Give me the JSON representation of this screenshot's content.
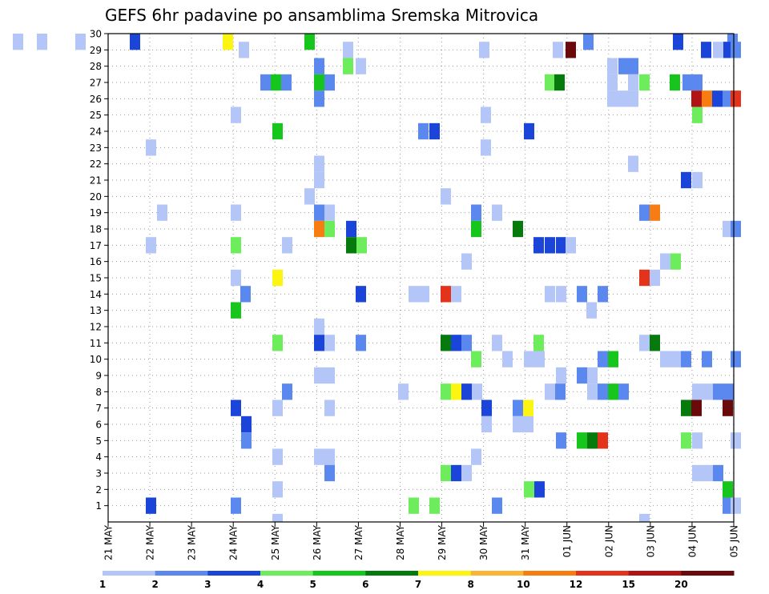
{
  "chart_data": {
    "type": "heatmap",
    "title": "GEFS 6hr padavine po ansamblima Sremska Mitrovica",
    "xlabel": "",
    "ylabel": "",
    "x_tick_labels": [
      "21 MAY",
      "22 MAY",
      "23 MAY",
      "24 MAY",
      "25 MAY",
      "26 MAY",
      "27 MAY",
      "28 MAY",
      "29 MAY",
      "30 MAY",
      "31 MAY",
      "01 JUN",
      "02 JUN",
      "03 JUN",
      "04 JUN",
      "05 JUN"
    ],
    "y_tick_labels": [
      "1",
      "2",
      "3",
      "4",
      "5",
      "6",
      "7",
      "8",
      "9",
      "10",
      "11",
      "12",
      "13",
      "14",
      "15",
      "16",
      "17",
      "18",
      "19",
      "20",
      "21",
      "22",
      "23",
      "24",
      "25",
      "26",
      "27",
      "28",
      "29",
      "30"
    ],
    "xlim": [
      0,
      60
    ],
    "ylim": [
      0,
      30
    ],
    "grid": true,
    "colorbar": {
      "tick_labels": [
        "1",
        "2",
        "3",
        "4",
        "5",
        "6",
        "7",
        "8",
        "10",
        "12",
        "15",
        "20"
      ],
      "colors": [
        "#b3c6f7",
        "#5b88ee",
        "#1b45d8",
        "#6ded5c",
        "#16c61c",
        "#077a0e",
        "#fbf511",
        "#fbb435",
        "#f77c12",
        "#e3331a",
        "#b01414",
        "#6a0a0a"
      ]
    },
    "cells": [
      [
        16,
        30,
        0
      ],
      [
        46,
        30,
        0
      ],
      [
        94,
        30,
        0
      ],
      [
        162,
        30,
        2
      ],
      [
        278,
        30,
        6
      ],
      [
        380,
        30,
        4
      ],
      [
        728,
        30,
        1
      ],
      [
        840,
        30,
        2
      ],
      [
        908,
        30,
        1
      ],
      [
        298,
        29,
        0
      ],
      [
        428,
        29,
        0
      ],
      [
        598,
        29,
        0
      ],
      [
        690,
        29,
        0
      ],
      [
        706,
        29,
        11
      ],
      [
        875,
        29,
        2
      ],
      [
        890,
        29,
        0
      ],
      [
        903,
        29,
        2
      ],
      [
        912,
        29,
        1
      ],
      [
        392,
        28,
        1
      ],
      [
        428,
        28,
        3
      ],
      [
        444,
        28,
        0
      ],
      [
        758,
        28,
        0
      ],
      [
        772,
        28,
        1
      ],
      [
        784,
        28,
        1
      ],
      [
        325,
        27,
        1
      ],
      [
        338,
        27,
        4
      ],
      [
        351,
        27,
        1
      ],
      [
        392,
        27,
        4
      ],
      [
        405,
        27,
        1
      ],
      [
        680,
        27,
        3
      ],
      [
        692,
        27,
        5
      ],
      [
        758,
        27,
        0
      ],
      [
        784,
        27,
        0
      ],
      [
        798,
        27,
        3
      ],
      [
        836,
        27,
        4
      ],
      [
        852,
        27,
        1
      ],
      [
        864,
        27,
        1
      ],
      [
        392,
        26,
        1
      ],
      [
        758,
        26,
        0
      ],
      [
        771,
        26,
        0
      ],
      [
        784,
        26,
        0
      ],
      [
        863,
        26,
        10
      ],
      [
        876,
        26,
        8
      ],
      [
        889,
        26,
        2
      ],
      [
        902,
        26,
        1
      ],
      [
        912,
        26,
        9
      ],
      [
        288,
        25,
        0
      ],
      [
        600,
        25,
        0
      ],
      [
        864,
        25,
        3
      ],
      [
        340,
        24,
        4
      ],
      [
        522,
        24,
        1
      ],
      [
        536,
        24,
        2
      ],
      [
        654,
        24,
        2
      ],
      [
        182,
        23,
        0
      ],
      [
        600,
        23,
        0
      ],
      [
        392,
        22,
        0
      ],
      [
        784,
        22,
        0
      ],
      [
        392,
        21,
        0
      ],
      [
        850,
        21,
        2
      ],
      [
        864,
        21,
        0
      ],
      [
        380,
        20,
        0
      ],
      [
        550,
        20,
        0
      ],
      [
        196,
        19,
        0
      ],
      [
        288,
        19,
        0
      ],
      [
        392,
        19,
        1
      ],
      [
        405,
        19,
        0
      ],
      [
        588,
        19,
        1
      ],
      [
        614,
        19,
        0
      ],
      [
        798,
        19,
        1
      ],
      [
        811,
        19,
        8
      ],
      [
        392,
        18,
        8
      ],
      [
        405,
        18,
        3
      ],
      [
        432,
        18,
        2
      ],
      [
        588,
        18,
        4
      ],
      [
        640,
        18,
        5
      ],
      [
        902,
        18,
        0
      ],
      [
        912,
        18,
        1
      ],
      [
        182,
        17,
        0
      ],
      [
        288,
        17,
        3
      ],
      [
        352,
        17,
        0
      ],
      [
        432,
        17,
        5
      ],
      [
        445,
        17,
        3
      ],
      [
        666,
        17,
        2
      ],
      [
        680,
        17,
        2
      ],
      [
        694,
        17,
        2
      ],
      [
        706,
        17,
        0
      ],
      [
        576,
        16,
        0
      ],
      [
        824,
        16,
        0
      ],
      [
        837,
        16,
        3
      ],
      [
        288,
        15,
        0
      ],
      [
        340,
        15,
        6
      ],
      [
        798,
        15,
        9
      ],
      [
        811,
        15,
        0
      ],
      [
        300,
        14,
        1
      ],
      [
        444,
        14,
        2
      ],
      [
        510,
        14,
        0
      ],
      [
        523,
        14,
        0
      ],
      [
        550,
        14,
        9
      ],
      [
        563,
        14,
        0
      ],
      [
        680,
        14,
        0
      ],
      [
        694,
        14,
        0
      ],
      [
        720,
        14,
        1
      ],
      [
        746,
        14,
        1
      ],
      [
        288,
        13,
        4
      ],
      [
        732,
        13,
        0
      ],
      [
        392,
        12,
        0
      ],
      [
        340,
        11,
        3
      ],
      [
        392,
        11,
        2
      ],
      [
        405,
        11,
        0
      ],
      [
        444,
        11,
        1
      ],
      [
        550,
        11,
        5
      ],
      [
        563,
        11,
        2
      ],
      [
        576,
        11,
        1
      ],
      [
        614,
        11,
        0
      ],
      [
        666,
        11,
        3
      ],
      [
        798,
        11,
        0
      ],
      [
        811,
        11,
        5
      ],
      [
        588,
        10,
        3
      ],
      [
        627,
        10,
        0
      ],
      [
        654,
        10,
        0
      ],
      [
        667,
        10,
        0
      ],
      [
        746,
        10,
        1
      ],
      [
        759,
        10,
        4
      ],
      [
        824,
        10,
        0
      ],
      [
        837,
        10,
        0
      ],
      [
        850,
        10,
        1
      ],
      [
        876,
        10,
        1
      ],
      [
        912,
        10,
        1
      ],
      [
        392,
        9,
        0
      ],
      [
        405,
        9,
        0
      ],
      [
        694,
        9,
        0
      ],
      [
        720,
        9,
        1
      ],
      [
        733,
        9,
        0
      ],
      [
        352,
        8,
        1
      ],
      [
        497,
        8,
        0
      ],
      [
        550,
        8,
        3
      ],
      [
        563,
        8,
        6
      ],
      [
        576,
        8,
        2
      ],
      [
        589,
        8,
        0
      ],
      [
        680,
        8,
        0
      ],
      [
        693,
        8,
        1
      ],
      [
        733,
        8,
        0
      ],
      [
        746,
        8,
        1
      ],
      [
        759,
        8,
        4
      ],
      [
        772,
        8,
        1
      ],
      [
        864,
        8,
        0
      ],
      [
        877,
        8,
        0
      ],
      [
        890,
        8,
        1
      ],
      [
        903,
        8,
        1
      ],
      [
        288,
        7,
        2
      ],
      [
        340,
        7,
        0
      ],
      [
        405,
        7,
        0
      ],
      [
        601,
        7,
        2
      ],
      [
        640,
        7,
        1
      ],
      [
        653,
        7,
        6
      ],
      [
        850,
        7,
        5
      ],
      [
        863,
        7,
        11
      ],
      [
        902,
        7,
        11
      ],
      [
        301,
        6,
        2
      ],
      [
        601,
        6,
        0
      ],
      [
        640,
        6,
        0
      ],
      [
        653,
        6,
        0
      ],
      [
        301,
        5,
        1
      ],
      [
        694,
        5,
        1
      ],
      [
        720,
        5,
        4
      ],
      [
        733,
        5,
        5
      ],
      [
        746,
        5,
        9
      ],
      [
        850,
        5,
        3
      ],
      [
        864,
        5,
        0
      ],
      [
        912,
        5,
        0
      ],
      [
        340,
        4,
        0
      ],
      [
        392,
        4,
        0
      ],
      [
        405,
        4,
        0
      ],
      [
        588,
        4,
        0
      ],
      [
        405,
        3,
        1
      ],
      [
        550,
        3,
        3
      ],
      [
        563,
        3,
        2
      ],
      [
        576,
        3,
        0
      ],
      [
        864,
        3,
        0
      ],
      [
        877,
        3,
        0
      ],
      [
        890,
        3,
        1
      ],
      [
        340,
        2,
        0
      ],
      [
        654,
        2,
        3
      ],
      [
        667,
        2,
        2
      ],
      [
        902,
        2,
        4
      ],
      [
        182,
        1,
        2
      ],
      [
        288,
        1,
        1
      ],
      [
        510,
        1,
        3
      ],
      [
        536,
        1,
        3
      ],
      [
        614,
        1,
        1
      ],
      [
        902,
        1,
        1
      ],
      [
        912,
        1,
        0
      ],
      [
        340,
        0,
        0
      ],
      [
        798,
        0,
        0
      ]
    ]
  }
}
